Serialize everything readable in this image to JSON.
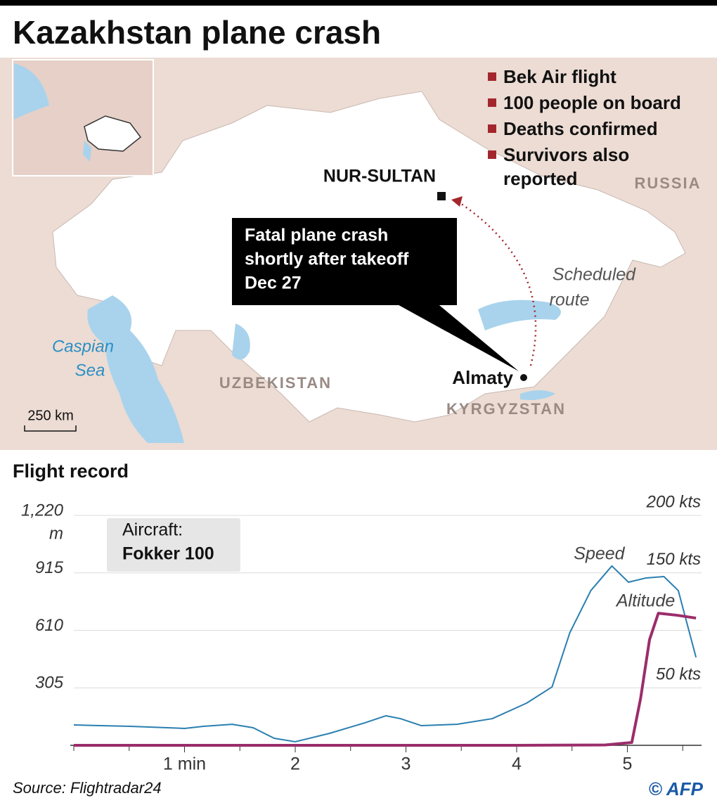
{
  "title": "Kazakhstan plane crash",
  "map": {
    "legend": [
      "Bek Air flight",
      "100 people on board",
      "Deaths confirmed",
      "Survivors also reported"
    ],
    "capital": "NUR-SULTAN",
    "city": "Almaty",
    "countries": [
      "RUSSIA",
      "UZBEKISTAN",
      "KYRGYZSTAN"
    ],
    "sea": [
      "Caspian",
      "Sea"
    ],
    "callout": [
      "Fatal plane crash",
      "shortly after takeoff",
      "Dec 27"
    ],
    "route_label": [
      "Scheduled",
      "route"
    ],
    "scale": "250 km"
  },
  "chart_data": {
    "type": "line",
    "subtitle": "Flight record",
    "note": [
      "Aircraft:",
      "Fokker 100"
    ],
    "y_unit": "m",
    "xlim": [
      0,
      5.67
    ],
    "xticks": [
      {
        "value": 1,
        "label": "1 min"
      },
      2,
      3,
      4,
      5
    ],
    "xticks_minor": [
      0,
      0.5,
      1.5,
      2.5,
      3.5,
      4.5,
      5.5
    ],
    "ylim": [
      0,
      1220
    ],
    "yticks": [
      305,
      610,
      915,
      {
        "value": 1220,
        "label": "1,220"
      }
    ],
    "y2lim": [
      0,
      200
    ],
    "y2ticks": [
      {
        "value": 50,
        "label": "50 kts"
      },
      {
        "value": 150,
        "label": "150 kts"
      },
      {
        "value": 200,
        "label": "200 kts"
      }
    ],
    "grid": true,
    "series": [
      {
        "name": "Speed",
        "color": "#2a7fb0",
        "axis": "y2",
        "x": [
          0,
          0.51,
          1.0,
          1.17,
          1.43,
          1.62,
          1.81,
          2.0,
          2.31,
          2.63,
          2.82,
          2.95,
          3.14,
          3.46,
          3.78,
          4.09,
          4.32,
          4.48,
          4.67,
          4.86,
          5.01,
          5.17,
          5.33,
          5.46,
          5.62
        ],
        "values": [
          17.7,
          16.5,
          14.7,
          16.5,
          18.3,
          15.3,
          6.1,
          3.1,
          10.4,
          19.6,
          25.7,
          23.2,
          17.1,
          18.3,
          23.2,
          36.7,
          50.8,
          97.9,
          134.6,
          156,
          141.9,
          145.6,
          146.8,
          134.6,
          76.5
        ]
      },
      {
        "name": "Altitude",
        "color": "#9b2d6b",
        "x": [
          0,
          1,
          2,
          3,
          4,
          4.8,
          5.04,
          5.12,
          5.2,
          5.28,
          5.45,
          5.62
        ],
        "values": [
          0,
          0,
          0,
          0,
          0,
          2,
          15,
          250,
          560,
          701,
          690,
          675
        ]
      }
    ]
  },
  "source": "Source: Flightradar24",
  "credit": "© AFP"
}
